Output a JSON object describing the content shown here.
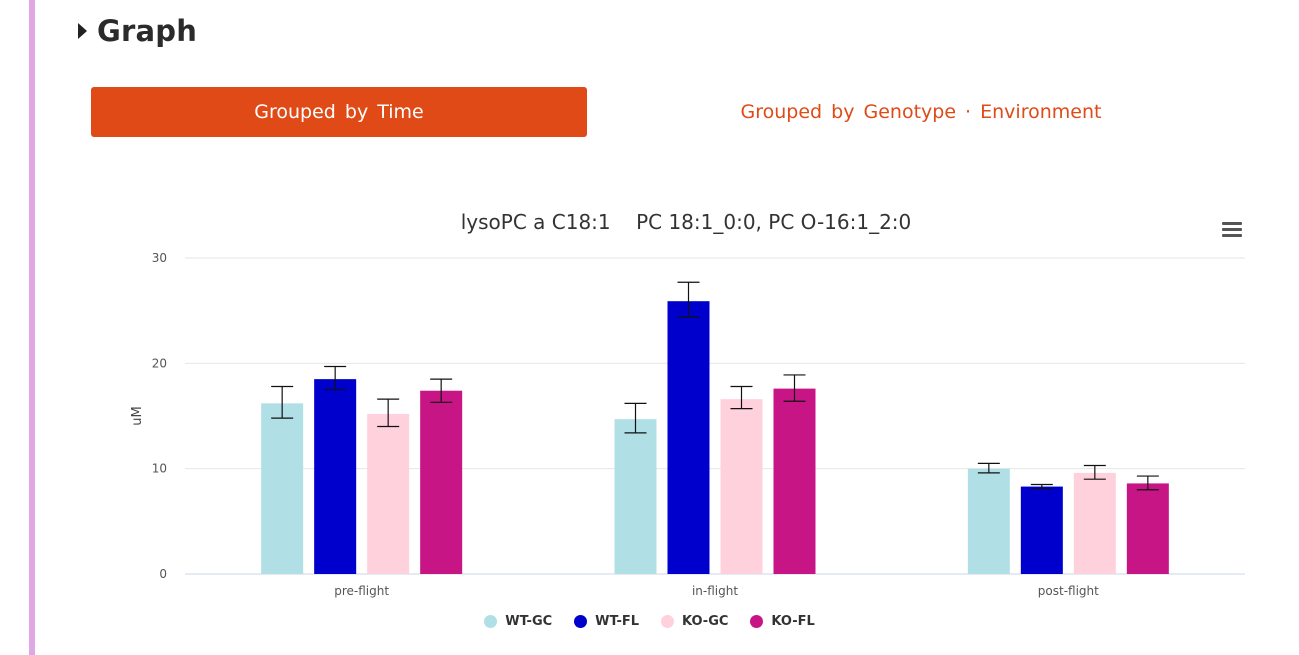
{
  "section": {
    "title": "Graph"
  },
  "tabs": [
    {
      "label": "Grouped by Time",
      "active": true
    },
    {
      "label": "Grouped by Genotype · Environment",
      "active": false
    }
  ],
  "colors": {
    "accent": "#df4a17",
    "rule": "#e1a6e6"
  },
  "chart_data": {
    "type": "bar",
    "title": "lysoPC a C18:1    PC 18:1_0:0, PC O-16:1_2:0",
    "xlabel": "",
    "ylabel": "uM",
    "ylim": [
      0,
      30
    ],
    "yticks": [
      0,
      10,
      20,
      30
    ],
    "grid": true,
    "legend_position": "bottom-center",
    "categories": [
      "pre-flight",
      "in-flight",
      "post-flight"
    ],
    "series": [
      {
        "name": "WT-GC",
        "color": "#b0e0e6",
        "values": [
          16.2,
          14.7,
          10.0
        ],
        "error": [
          [
            14.8,
            17.8
          ],
          [
            13.4,
            16.2
          ],
          [
            9.6,
            10.5
          ]
        ]
      },
      {
        "name": "WT-FL",
        "color": "#0000cd",
        "values": [
          18.5,
          25.9,
          8.3
        ],
        "error": [
          [
            17.5,
            19.7
          ],
          [
            24.4,
            27.7
          ],
          [
            8.1,
            8.5
          ]
        ]
      },
      {
        "name": "KO-GC",
        "color": "#ffd1dc",
        "values": [
          15.2,
          16.6,
          9.6
        ],
        "error": [
          [
            14.0,
            16.6
          ],
          [
            15.7,
            17.8
          ],
          [
            9.0,
            10.3
          ]
        ]
      },
      {
        "name": "KO-FL",
        "color": "#c71585",
        "values": [
          17.4,
          17.6,
          8.6
        ],
        "error": [
          [
            16.3,
            18.5
          ],
          [
            16.4,
            18.9
          ],
          [
            8.0,
            9.3
          ]
        ]
      }
    ]
  }
}
